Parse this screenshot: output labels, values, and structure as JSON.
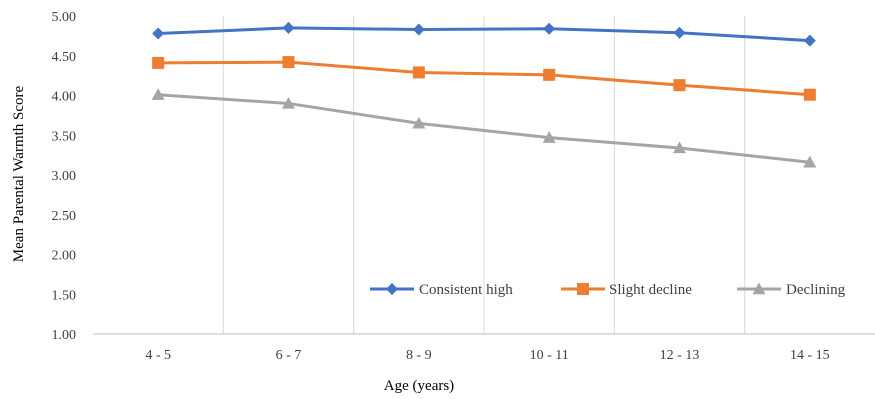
{
  "chart_data": {
    "type": "line",
    "categories": [
      "4 - 5",
      "6 - 7",
      "8 - 9",
      "10 - 11",
      "12 - 13",
      "14 - 15"
    ],
    "ylabel": "Mean Parental Warmth Score",
    "xlabel": "Age (years)",
    "ylim": [
      1.0,
      5.0
    ],
    "yticks": [
      "1.00",
      "1.50",
      "2.00",
      "2.50",
      "3.00",
      "3.50",
      "4.00",
      "4.50",
      "5.00"
    ],
    "grid": "vertical category separators",
    "legend_position": "bottom-right inside plot",
    "series": [
      {
        "name": "Consistent high",
        "color": "#4472C4",
        "marker": "diamond",
        "values": [
          4.78,
          4.85,
          4.83,
          4.84,
          4.79,
          4.69
        ]
      },
      {
        "name": "Slight decline",
        "color": "#ED7D31",
        "marker": "square",
        "values": [
          4.41,
          4.42,
          4.29,
          4.26,
          4.13,
          4.01
        ]
      },
      {
        "name": "Declining",
        "color": "#A5A5A5",
        "marker": "triangle",
        "values": [
          4.01,
          3.9,
          3.65,
          3.47,
          3.34,
          3.16
        ]
      }
    ]
  }
}
